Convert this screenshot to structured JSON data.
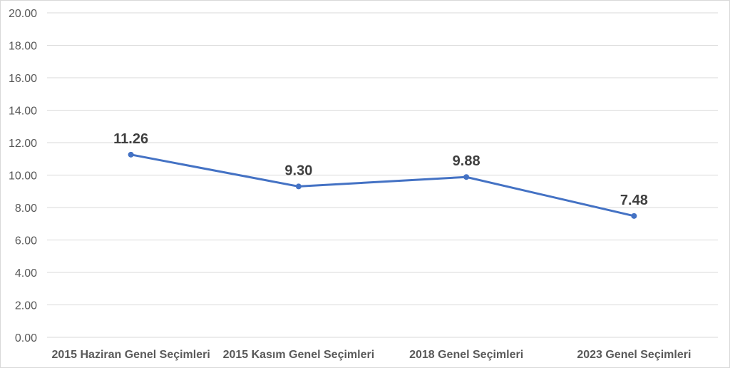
{
  "chart_data": {
    "type": "line",
    "title": "",
    "xlabel": "",
    "ylabel": "",
    "categories": [
      "2015 Haziran Genel Seçimleri",
      "2015 Kasım Genel Seçimleri",
      "2018 Genel Seçimleri",
      "2023 Genel Seçimleri"
    ],
    "values": [
      11.26,
      9.3,
      9.88,
      7.48
    ],
    "data_labels": [
      "11.26",
      "9.30",
      "9.88",
      "7.48"
    ],
    "ylim": [
      0,
      20
    ],
    "yticks": [
      "0.00",
      "2.00",
      "4.00",
      "6.00",
      "8.00",
      "10.00",
      "12.00",
      "14.00",
      "16.00",
      "18.00",
      "20.00"
    ],
    "grid": true,
    "legend": "none",
    "colors": {
      "line": "#4472C4",
      "grid": "#D9D9D9",
      "text": "#595959",
      "label": "#404040"
    }
  }
}
